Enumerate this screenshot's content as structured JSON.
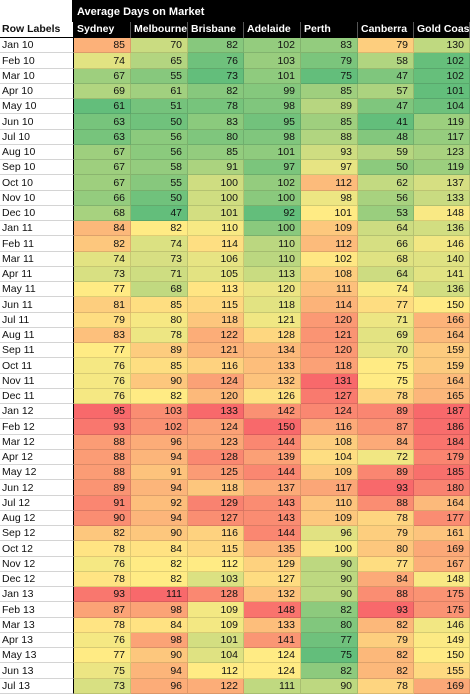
{
  "chart_data": {
    "type": "heatmap",
    "title": "Average Days on Market",
    "row_header": "Row Labels",
    "columns": [
      "Sydney",
      "Melbourne",
      "Brisbane",
      "Adelaide",
      "Perth",
      "Canberra",
      "Gold Coast"
    ],
    "rows": [
      "Jan 10",
      "Feb 10",
      "Mar 10",
      "Apr 10",
      "May 10",
      "Jun 10",
      "Jul 10",
      "Aug 10",
      "Sep 10",
      "Oct 10",
      "Nov 10",
      "Dec 10",
      "Jan 11",
      "Feb 11",
      "Mar 11",
      "Apr 11",
      "May 11",
      "Jun 11",
      "Jul 11",
      "Aug 11",
      "Sep 11",
      "Oct 11",
      "Nov 11",
      "Dec 11",
      "Jan 12",
      "Feb 12",
      "Mar 12",
      "Apr 12",
      "May 12",
      "Jun 12",
      "Jul 12",
      "Aug 12",
      "Sep 12",
      "Oct 12",
      "Nov 12",
      "Dec 12",
      "Jan 13",
      "Feb 13",
      "Mar 13",
      "Apr 13",
      "May 13",
      "Jun 13",
      "Jul 13"
    ],
    "values": [
      [
        85,
        70,
        82,
        102,
        83,
        79,
        130
      ],
      [
        74,
        65,
        76,
        103,
        79,
        58,
        102
      ],
      [
        67,
        55,
        73,
        101,
        75,
        47,
        102
      ],
      [
        69,
        61,
        82,
        99,
        85,
        57,
        101
      ],
      [
        61,
        51,
        78,
        98,
        89,
        47,
        104
      ],
      [
        63,
        50,
        83,
        95,
        85,
        41,
        119
      ],
      [
        63,
        56,
        80,
        98,
        88,
        48,
        117
      ],
      [
        67,
        56,
        85,
        101,
        93,
        59,
        123
      ],
      [
        67,
        58,
        91,
        97,
        97,
        50,
        119
      ],
      [
        67,
        55,
        100,
        102,
        112,
        62,
        137
      ],
      [
        66,
        50,
        100,
        100,
        98,
        56,
        133
      ],
      [
        68,
        47,
        101,
        92,
        101,
        53,
        148
      ],
      [
        84,
        82,
        110,
        100,
        109,
        64,
        136
      ],
      [
        82,
        74,
        114,
        110,
        112,
        66,
        146
      ],
      [
        74,
        73,
        106,
        110,
        102,
        68,
        140
      ],
      [
        73,
        71,
        105,
        113,
        108,
        64,
        141
      ],
      [
        77,
        68,
        113,
        120,
        111,
        74,
        136
      ],
      [
        81,
        85,
        115,
        118,
        114,
        77,
        150
      ],
      [
        79,
        80,
        118,
        121,
        120,
        71,
        166
      ],
      [
        83,
        78,
        122,
        128,
        121,
        69,
        164
      ],
      [
        77,
        89,
        121,
        134,
        120,
        70,
        159
      ],
      [
        76,
        85,
        116,
        133,
        118,
        75,
        159
      ],
      [
        76,
        90,
        124,
        132,
        131,
        75,
        164
      ],
      [
        76,
        82,
        120,
        126,
        127,
        78,
        165
      ],
      [
        95,
        103,
        133,
        142,
        124,
        89,
        187
      ],
      [
        93,
        102,
        124,
        150,
        116,
        87,
        186
      ],
      [
        88,
        96,
        123,
        144,
        108,
        84,
        184
      ],
      [
        88,
        94,
        128,
        139,
        104,
        72,
        179
      ],
      [
        88,
        91,
        125,
        144,
        109,
        89,
        185
      ],
      [
        89,
        94,
        118,
        137,
        117,
        93,
        180
      ],
      [
        91,
        92,
        129,
        143,
        110,
        88,
        164
      ],
      [
        90,
        94,
        127,
        143,
        109,
        78,
        177
      ],
      [
        82,
        90,
        116,
        144,
        96,
        79,
        161
      ],
      [
        78,
        84,
        115,
        135,
        100,
        80,
        169
      ],
      [
        76,
        82,
        112,
        129,
        90,
        77,
        167
      ],
      [
        78,
        82,
        103,
        127,
        90,
        84,
        148
      ],
      [
        93,
        111,
        128,
        132,
        90,
        88,
        175
      ],
      [
        87,
        98,
        109,
        148,
        82,
        93,
        175
      ],
      [
        78,
        84,
        109,
        133,
        80,
        82,
        146
      ],
      [
        76,
        98,
        101,
        141,
        77,
        79,
        149
      ],
      [
        77,
        90,
        104,
        124,
        75,
        82,
        150
      ],
      [
        75,
        94,
        112,
        124,
        82,
        82,
        155
      ],
      [
        73,
        96,
        122,
        111,
        90,
        78,
        169
      ]
    ],
    "color_scale": {
      "low": "#63be7b",
      "mid": "#ffeb84",
      "high": "#f8696b",
      "type": "per-column 3-color scale"
    }
  }
}
